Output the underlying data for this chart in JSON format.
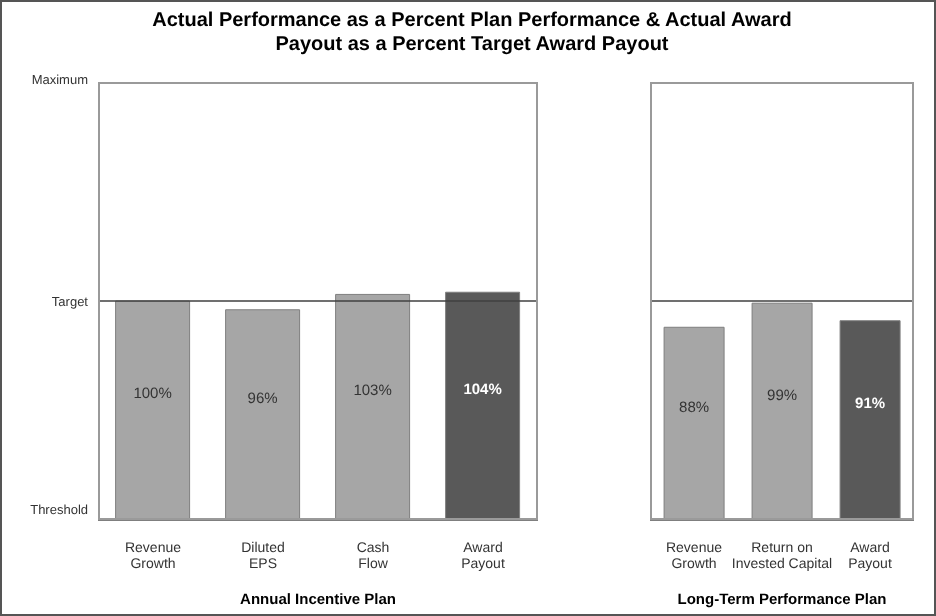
{
  "chart_data": [
    {
      "type": "bar",
      "title": "Actual Performance as a Percent Plan Performance & Actual Award Payout as a Percent Target Award Payout",
      "xlabel": "Annual Incentive Plan",
      "categories": [
        "Revenue Growth",
        "Diluted EPS",
        "Cash Flow",
        "Award Payout"
      ],
      "values": [
        100,
        96,
        103,
        104
      ],
      "colors": [
        "#a6a6a6",
        "#a6a6a6",
        "#a6a6a6",
        "#595959"
      ],
      "value_labels": [
        "100%",
        "96%",
        "103%",
        "104%"
      ],
      "ylim": [
        0,
        200
      ],
      "annotations": [
        "Maximum",
        "Threshold"
      ],
      "ref_lines": [
        {
          "axis": "y",
          "value": 100,
          "label": "Target",
          "color": "#404040"
        }
      ]
    },
    {
      "type": "bar",
      "xlabel": "Long-Term Performance Plan",
      "categories": [
        "Revenue Growth",
        "Return on Invested Capital",
        "Award Payout"
      ],
      "values": [
        88,
        99,
        91
      ],
      "colors": [
        "#a6a6a6",
        "#a6a6a6",
        "#595959"
      ],
      "value_labels": [
        "88%",
        "99%",
        "91%"
      ],
      "ylim": [
        0,
        200
      ],
      "ref_lines": [
        {
          "axis": "y",
          "value": 100,
          "color": "#404040"
        }
      ]
    }
  ]
}
